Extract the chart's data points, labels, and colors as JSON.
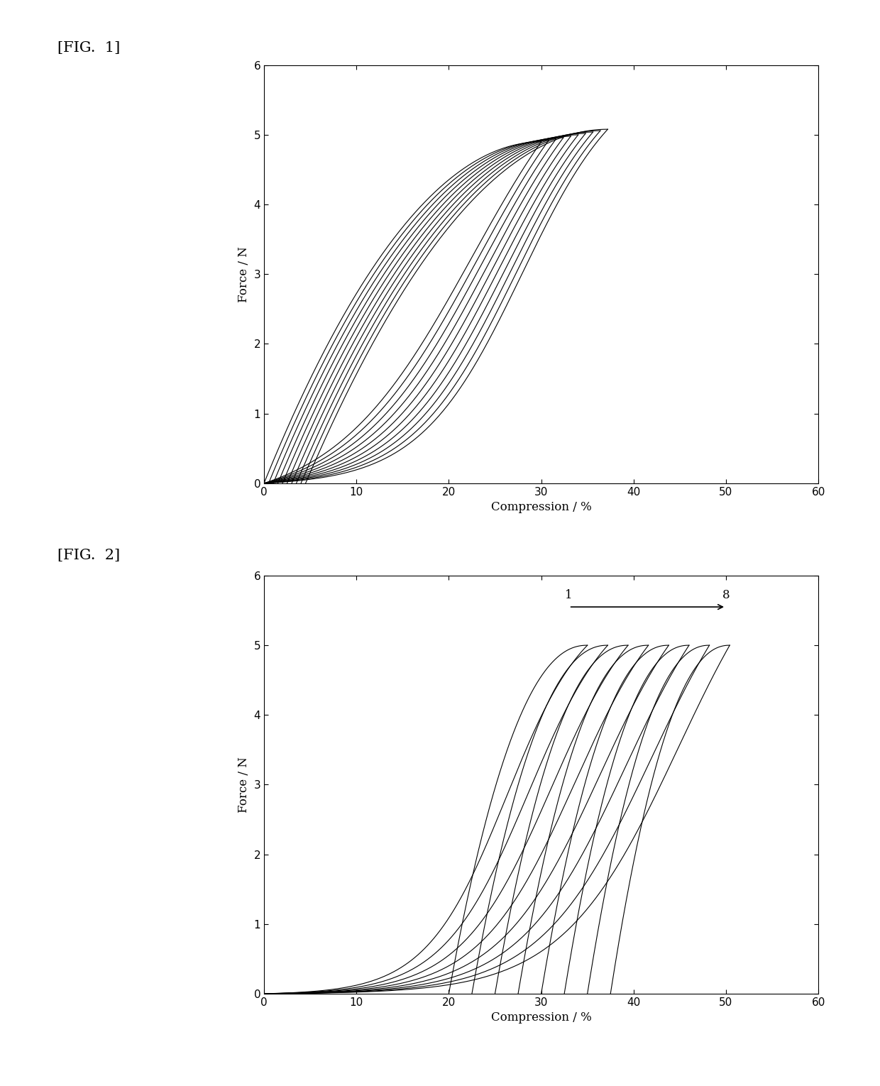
{
  "fig1_label": "[FIG.  1]",
  "fig2_label": "[FIG.  2]",
  "xlabel": "Compression / %",
  "ylabel": "Force / N",
  "xlim": [
    0,
    60
  ],
  "ylim": [
    0,
    6
  ],
  "xticks": [
    0,
    10,
    20,
    30,
    40,
    50,
    60
  ],
  "yticks": [
    0,
    1,
    2,
    3,
    4,
    5,
    6
  ],
  "fig1_n_curves": 10,
  "fig2_n_curves": 8,
  "bg_color": "#ffffff",
  "line_color": "#000000",
  "arrow_label_1": "1",
  "arrow_label_8": "8"
}
